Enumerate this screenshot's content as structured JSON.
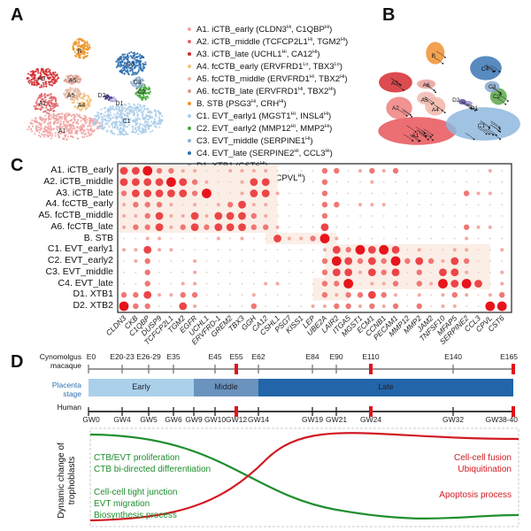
{
  "panels": {
    "a": "A",
    "b": "B",
    "c": "C",
    "d": "D"
  },
  "umap_a": {
    "cluster_labels": [
      "A1",
      "A2",
      "A3",
      "A4",
      "A5",
      "A6",
      "B",
      "C1",
      "C2",
      "C3",
      "C4",
      "D1",
      "D2"
    ]
  },
  "legend": [
    {
      "id": "A1",
      "text": "A1. iCTB_early (CLDN3",
      "m1": "Hi",
      "mid": ", C1QBP",
      "m2": "Hi",
      "end": ")",
      "color": "#f0a3a3"
    },
    {
      "id": "A2",
      "text": "A2. iCTB_middle (TCFCP2L1",
      "m1": "Hi",
      "mid": ", TGM2",
      "m2": "Hi",
      "end": ")",
      "color": "#e0666a"
    },
    {
      "id": "A3",
      "text": "A3. iCTB_late (UCHL1",
      "m1": "Hi",
      "mid": ", CA12",
      "m2": "Hi",
      "end": ")",
      "color": "#d42a2e"
    },
    {
      "id": "A4",
      "text": "A4. fcCTB_early (ERVFRD1",
      "m1": "Lo",
      "mid": ", TBX3",
      "m2": "Lo",
      "end": ")",
      "color": "#f3c27c"
    },
    {
      "id": "A5",
      "text": "A5. fcCTB_middle (ERVFRD1",
      "m1": "Hi",
      "mid": ", TBX2",
      "m2": "Hi",
      "end": ")",
      "color": "#e5b9a5"
    },
    {
      "id": "A6",
      "text": "A6. fcCTB_late (ERVFRD1",
      "m1": "Hi",
      "mid": ", TBX2",
      "m2": "Hi",
      "end": ")",
      "color": "#d99a8c"
    },
    {
      "id": "B",
      "text": "B. STB (PSG3",
      "m1": "Hi",
      "mid": ", CRH",
      "m2": "Hi",
      "end": ")",
      "color": "#ef9426"
    },
    {
      "id": "C1",
      "text": "C1. EVT_early1 (MGST1",
      "m1": "Hi",
      "mid": ", INSL4",
      "m2": "Hi",
      "end": ")",
      "color": "#a9cde9"
    },
    {
      "id": "C2",
      "text": "C2. EVT_early2 (MMP12",
      "m1": "Hi",
      "mid": ", MMP2",
      "m2": "Hi",
      "end": ")",
      "color": "#45a83a"
    },
    {
      "id": "C3",
      "text": "C3. EVT_middle (SERPINE1",
      "m1": "Hi",
      "mid": "",
      "m2": "",
      "end": ")",
      "color": "#8fb2d2"
    },
    {
      "id": "C4",
      "text": "C4. EVT_late (SERPINE2",
      "m1": "Hi",
      "mid": ", CCL3",
      "m2": "Hi",
      "end": ")",
      "color": "#2b6fb2"
    },
    {
      "id": "D1",
      "text": "D1. XTB1 (CST6",
      "m1": "Hi",
      "mid": "",
      "m2": "",
      "end": ")",
      "color": "#a9a2d2"
    },
    {
      "id": "D2",
      "text": "D2. XTB2 (CLDN3",
      "m1": "Hi",
      "mid": ", CPVL",
      "m2": "Hi",
      "end": ")",
      "color": "#4a3a8c"
    }
  ],
  "chart_data": {
    "type": "dotplot",
    "rows": [
      "A1. iCTB_early",
      "A2. iCTB_middle",
      "A3. iCTB_late",
      "A4. fcCTB_early",
      "A5. fcCTB_middle",
      "A6. fcCTB_late",
      "B. STB",
      "C1. EVT_early1",
      "C2. EVT_early2",
      "C3. EVT_middle",
      "C4. EVT_late",
      "D1. XTB1",
      "D2. XTB2"
    ],
    "genes": [
      "CLDN3",
      "CKB",
      "C1QBP",
      "DUSP9",
      "TCFCP2L1",
      "TGM2",
      "EGFR",
      "UCHL1",
      "ERVFRD-1",
      "GREM2",
      "TBX3",
      "GGH",
      "CA12",
      "CSHL1",
      "PSG7",
      "KISS1",
      "LEP",
      "UBE2A",
      "LAIR2",
      "ITGA5",
      "MGST1",
      "ECM1",
      "CCNB1",
      "PECAM1",
      "MMP12",
      "MMP2",
      "JAM2",
      "TNFSF10",
      "MFAP5",
      "SERPINE2",
      "CCL3",
      "CPVL",
      "CST6"
    ],
    "level_scale": [
      0,
      4
    ],
    "levels": [
      [
        3,
        3,
        4,
        2,
        2,
        1,
        1,
        0,
        0,
        1,
        1,
        1,
        1,
        0,
        0,
        0,
        0,
        2,
        2,
        0,
        1,
        2,
        1,
        2,
        0,
        0,
        0,
        0,
        0,
        0,
        0,
        1,
        0
      ],
      [
        3,
        3,
        3,
        3,
        4,
        3,
        2,
        1,
        0,
        0,
        1,
        3,
        3,
        0,
        0,
        0,
        0,
        2,
        0,
        0,
        0,
        1,
        0,
        0,
        0,
        0,
        0,
        0,
        0,
        0,
        0,
        0,
        0
      ],
      [
        2,
        3,
        3,
        3,
        3,
        3,
        2,
        4,
        0,
        0,
        1,
        3,
        3,
        1,
        0,
        0,
        0,
        2,
        0,
        0,
        0,
        0,
        0,
        0,
        0,
        0,
        0,
        0,
        0,
        2,
        1,
        1,
        0
      ],
      [
        1,
        2,
        2,
        2,
        1,
        0,
        1,
        0,
        1,
        2,
        3,
        1,
        1,
        0,
        0,
        0,
        0,
        2,
        2,
        0,
        1,
        1,
        1,
        0,
        0,
        0,
        0,
        0,
        0,
        0,
        0,
        0,
        0
      ],
      [
        1,
        1,
        2,
        3,
        1,
        1,
        3,
        1,
        3,
        3,
        3,
        2,
        1,
        0,
        0,
        0,
        0,
        2,
        0,
        0,
        0,
        0,
        0,
        0,
        0,
        0,
        0,
        0,
        0,
        0,
        0,
        0,
        0
      ],
      [
        1,
        2,
        2,
        3,
        1,
        2,
        3,
        2,
        3,
        3,
        3,
        2,
        2,
        1,
        0,
        0,
        0,
        3,
        0,
        0,
        0,
        0,
        0,
        0,
        0,
        0,
        0,
        0,
        0,
        2,
        1,
        1,
        0
      ],
      [
        0,
        0,
        1,
        1,
        0,
        0,
        0,
        0,
        1,
        0,
        1,
        0,
        0,
        3,
        1,
        1,
        2,
        4,
        1,
        0,
        0,
        0,
        0,
        0,
        0,
        0,
        0,
        0,
        0,
        1,
        0,
        0,
        0
      ],
      [
        1,
        1,
        3,
        1,
        1,
        0,
        0,
        0,
        0,
        0,
        0,
        0,
        0,
        0,
        0,
        0,
        0,
        1,
        3,
        2,
        4,
        3,
        4,
        3,
        0,
        1,
        0,
        0,
        1,
        1,
        0,
        0,
        1
      ],
      [
        0,
        1,
        2,
        0,
        0,
        0,
        1,
        0,
        0,
        0,
        0,
        0,
        0,
        0,
        0,
        0,
        0,
        2,
        4,
        3,
        2,
        3,
        2,
        4,
        2,
        3,
        2,
        1,
        3,
        2,
        0,
        0,
        0
      ],
      [
        0,
        0,
        2,
        0,
        0,
        0,
        1,
        0,
        0,
        0,
        0,
        0,
        0,
        0,
        0,
        0,
        0,
        2,
        3,
        3,
        1,
        3,
        2,
        3,
        0,
        2,
        0,
        3,
        3,
        1,
        0,
        0,
        1
      ],
      [
        0,
        0,
        2,
        0,
        0,
        1,
        1,
        0,
        0,
        0,
        0,
        0,
        1,
        1,
        0,
        0,
        0,
        2,
        2,
        4,
        0,
        1,
        1,
        2,
        0,
        2,
        1,
        4,
        3,
        4,
        3,
        0,
        1
      ],
      [
        2,
        2,
        3,
        1,
        1,
        2,
        2,
        0,
        0,
        0,
        0,
        1,
        0,
        0,
        0,
        0,
        0,
        2,
        1,
        2,
        2,
        3,
        2,
        1,
        0,
        1,
        0,
        1,
        2,
        1,
        0,
        1,
        2
      ],
      [
        4,
        2,
        2,
        0,
        0,
        3,
        1,
        0,
        0,
        0,
        0,
        2,
        0,
        0,
        0,
        0,
        1,
        1,
        2,
        2,
        1,
        2,
        1,
        2,
        0,
        2,
        0,
        1,
        1,
        0,
        0,
        4,
        4
      ]
    ],
    "color_low": "#f7d9cd",
    "color_high": "#e8141b",
    "highlight_color": "#fbeee6"
  },
  "timeline": {
    "cyno_label": [
      "Cynomolgus",
      "macaque"
    ],
    "cyno_ticks": [
      {
        "label": "E0",
        "marked": false
      },
      {
        "label": "E20-23",
        "marked": false
      },
      {
        "label": "E26-29",
        "marked": false
      },
      {
        "label": "E35",
        "marked": false
      },
      {
        "label": "E45",
        "marked": false
      },
      {
        "label": "E55",
        "marked": true
      },
      {
        "label": "E62",
        "marked": false
      },
      {
        "label": "E84",
        "marked": false
      },
      {
        "label": "E90",
        "marked": false
      },
      {
        "label": "E110",
        "marked": true
      },
      {
        "label": "E140",
        "marked": false
      },
      {
        "label": "E165",
        "marked": true
      }
    ],
    "stage_label": [
      "Placenta",
      "stage"
    ],
    "stages": [
      {
        "label": "Early",
        "color": "#abd0ea"
      },
      {
        "label": "Middle",
        "color": "#6a93be"
      },
      {
        "label": "Late",
        "color": "#2265a8"
      }
    ],
    "human_label": "Human",
    "human_ticks": [
      {
        "label": "GW0",
        "marked": false
      },
      {
        "label": "GW4",
        "marked": false
      },
      {
        "label": "GW5",
        "marked": false
      },
      {
        "label": "GW6",
        "marked": false
      },
      {
        "label": "GW9",
        "marked": false
      },
      {
        "label": "GW10",
        "marked": false
      },
      {
        "label": "GW12",
        "marked": true
      },
      {
        "label": "GW14",
        "marked": false
      },
      {
        "label": "GW19",
        "marked": false
      },
      {
        "label": "GW21",
        "marked": false
      },
      {
        "label": "GW24",
        "marked": true
      },
      {
        "label": "GW32",
        "marked": false
      },
      {
        "label": "GW38-40",
        "marked": true
      }
    ],
    "marker_color": "#e0141b"
  },
  "dynamics": {
    "ylabel": [
      "Dynamic change of",
      "trophoblasts"
    ],
    "green_color": "#1f8f2e",
    "red_color": "#d11a22",
    "green_text_top": [
      "CTB/EVT proliferation",
      "CTB bi-directed differentiation"
    ],
    "green_text_bottom": [
      "Cell-cell tight junction",
      "EVT migration",
      "Biosynthesis process"
    ],
    "red_text_top": [
      "Cell-cell fusion",
      "Ubiquitination"
    ],
    "red_text_bottom": "Apoptosis process"
  }
}
